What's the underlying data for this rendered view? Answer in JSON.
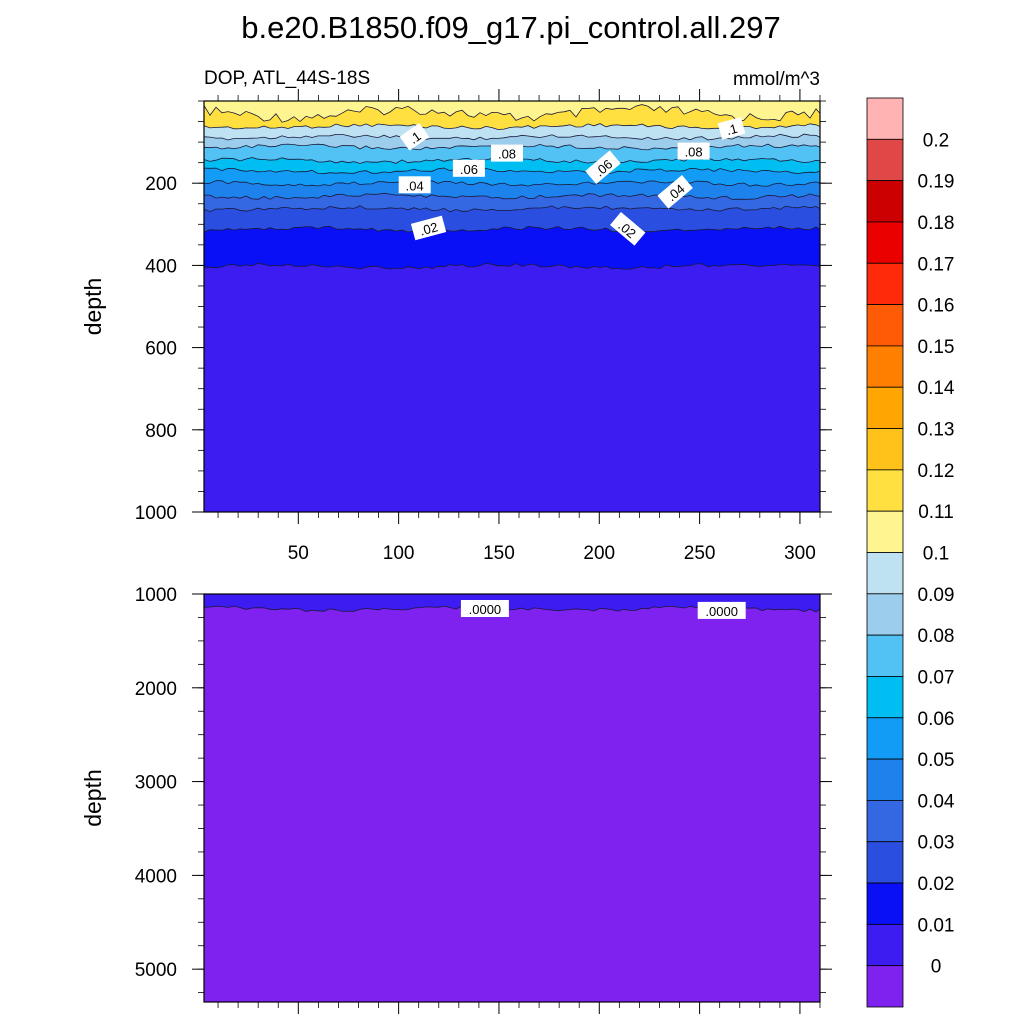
{
  "chart_data": {
    "type": "filled-contour",
    "title": "b.e20.B1850.f09_g17.pi_control.all.297",
    "left_subtitle": "DOP, ATL_44S-18S",
    "right_subtitle": "mmol/m^3",
    "x": {
      "range": [
        3,
        310
      ],
      "ticks": [
        "50",
        "100",
        "150",
        "200",
        "250",
        "300"
      ],
      "tick_values": [
        50,
        100,
        150,
        200,
        250,
        300
      ]
    },
    "panels": [
      {
        "ylabel": "depth",
        "ylim": [
          0,
          1000
        ],
        "reversed": true,
        "ticks": [
          "200",
          "400",
          "600",
          "800",
          "1000"
        ],
        "tick_values": [
          200,
          400,
          600,
          800,
          1000
        ],
        "bands": [
          {
            "top": 0,
            "bottom": 30,
            "color": "#FFF590"
          },
          {
            "top": 30,
            "bottom": 62,
            "color": "#FFE040"
          },
          {
            "top": 62,
            "bottom": 88,
            "color": "#BEE2F2"
          },
          {
            "top": 88,
            "bottom": 112,
            "color": "#9DCDEC"
          },
          {
            "top": 112,
            "bottom": 145,
            "color": "#52C2F4"
          },
          {
            "top": 145,
            "bottom": 170,
            "color": "#00BEF2"
          },
          {
            "top": 170,
            "bottom": 200,
            "color": "#139CF6"
          },
          {
            "top": 200,
            "bottom": 232,
            "color": "#1E82EC"
          },
          {
            "top": 232,
            "bottom": 262,
            "color": "#3468E3"
          },
          {
            "top": 262,
            "bottom": 312,
            "color": "#2A4FE0"
          },
          {
            "top": 312,
            "bottom": 402,
            "color": "#0A10F5"
          },
          {
            "top": 402,
            "bottom": 1000,
            "color": "#3C1CF0"
          }
        ],
        "contour_labels": [
          {
            "text": ".1",
            "x": 108,
            "y": 88,
            "angle": -35
          },
          {
            "text": ".1",
            "x": 266,
            "y": 68,
            "angle": -15
          },
          {
            "text": ".08",
            "x": 154,
            "y": 128,
            "angle": 0
          },
          {
            "text": ".08",
            "x": 247,
            "y": 123,
            "angle": 0
          },
          {
            "text": ".06",
            "x": 135,
            "y": 165,
            "angle": 0
          },
          {
            "text": ".06",
            "x": 202,
            "y": 162,
            "angle": -40
          },
          {
            "text": ".04",
            "x": 108,
            "y": 205,
            "angle": 0
          },
          {
            "text": ".04",
            "x": 238,
            "y": 222,
            "angle": -40
          },
          {
            "text": ".02",
            "x": 115,
            "y": 310,
            "angle": -15
          },
          {
            "text": ".02",
            "x": 214,
            "y": 312,
            "angle": 40
          }
        ]
      },
      {
        "ylabel": "depth",
        "ylim": [
          1000,
          5350
        ],
        "reversed": true,
        "ticks": [
          "1000",
          "2000",
          "3000",
          "4000",
          "5000"
        ],
        "tick_values": [
          1000,
          2000,
          3000,
          4000,
          5000
        ],
        "bands": [
          {
            "top": 1000,
            "bottom": 1160,
            "color": "#3C1CF0"
          },
          {
            "top": 1160,
            "bottom": 5350,
            "color": "#7F22F0"
          }
        ],
        "contour_labels": [
          {
            "text": ".0000",
            "x": 143,
            "y": 1160,
            "angle": 0
          },
          {
            "text": ".0000",
            "x": 261,
            "y": 1180,
            "angle": 0
          }
        ]
      }
    ],
    "colorbar": {
      "labels": [
        "0.2",
        "0.19",
        "0.18",
        "0.17",
        "0.16",
        "0.15",
        "0.14",
        "0.13",
        "0.12",
        "0.11",
        "0.1",
        "0.09",
        "0.08",
        "0.07",
        "0.06",
        "0.05",
        "0.04",
        "0.03",
        "0.02",
        "0.01",
        "0"
      ],
      "colors": [
        "#FFB3B3",
        "#E04848",
        "#CC0000",
        "#EB0000",
        "#FF2A0A",
        "#FF5A05",
        "#FF7F00",
        "#FFA602",
        "#FFC21A",
        "#FFE040",
        "#FFF590",
        "#BEE2F2",
        "#9DCDEC",
        "#52C2F4",
        "#00BEF2",
        "#139CF6",
        "#1E82EC",
        "#3468E3",
        "#2A4FE0",
        "#0A10F5",
        "#3C1CF0",
        "#7F22F0"
      ]
    }
  }
}
